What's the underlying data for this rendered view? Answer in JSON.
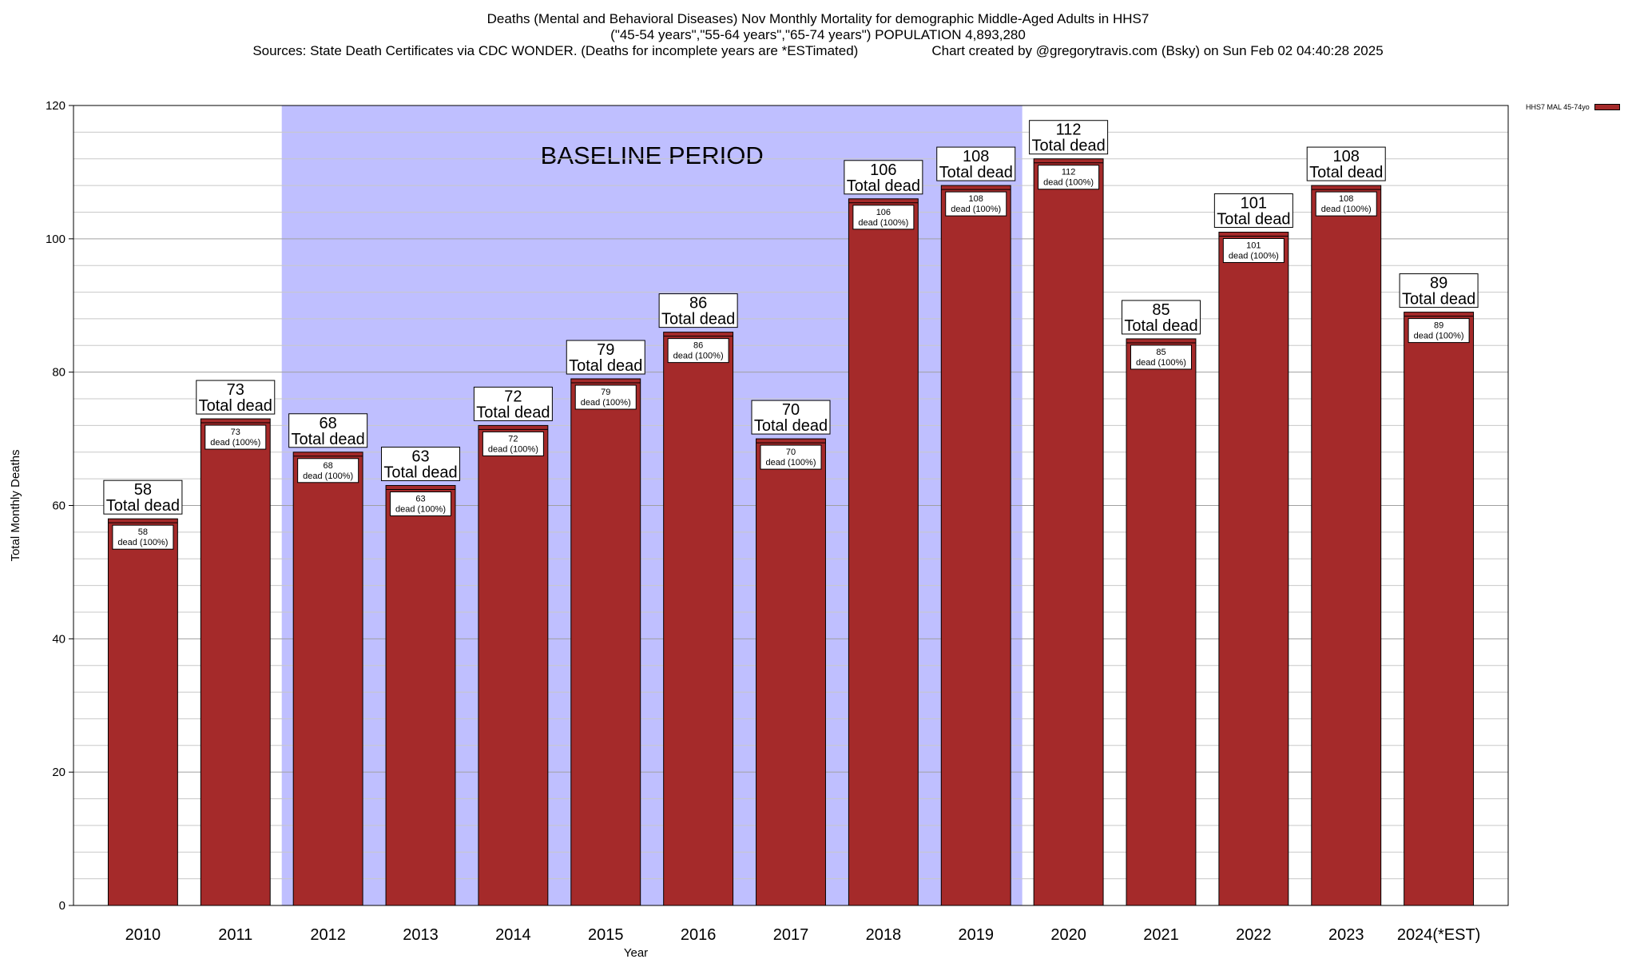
{
  "header": {
    "line1": "Deaths (Mental and Behavioral Diseases) Nov Monthly Mortality for demographic Middle-Aged Adults in HHS7",
    "line2": "(\"45-54 years\",\"55-64 years\",\"65-74 years\") POPULATION 4,893,280",
    "line3_left": "Sources: State Death Certificates via CDC WONDER. (Deaths for incomplete years are *ESTimated)",
    "line3_right": "Chart created by @gregorytravis.com (Bsky) on Sun Feb 02 04:40:28 2025"
  },
  "chart_data": {
    "type": "bar",
    "xlabel": "Year",
    "ylabel": "Total Monthly Deaths",
    "ylim": [
      0,
      120
    ],
    "yticks": [
      0,
      20,
      40,
      60,
      80,
      100,
      120
    ],
    "grid": true,
    "categories": [
      "2010",
      "2011",
      "2012",
      "2013",
      "2014",
      "2015",
      "2016",
      "2017",
      "2018",
      "2019",
      "2020",
      "2021",
      "2022",
      "2023",
      "2024(*EST)"
    ],
    "series": [
      {
        "name": "HHS7 MAL 45-74yo",
        "color": "#a52a2a",
        "values": [
          58,
          73,
          68,
          63,
          72,
          79,
          86,
          70,
          106,
          108,
          112,
          85,
          101,
          108,
          89
        ]
      }
    ],
    "top_label_suffix": "Total dead",
    "inner_label_suffix": "dead (100%)",
    "baseline": {
      "label": "BASELINE PERIOD",
      "from": "2012",
      "to": "2019",
      "color": "#bfbfff"
    },
    "legend_position": "top-right"
  }
}
